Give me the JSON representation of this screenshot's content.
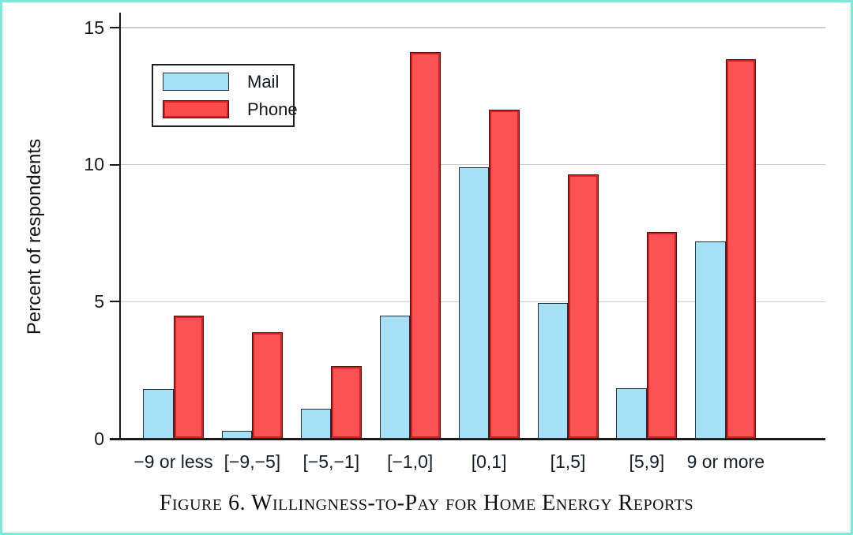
{
  "figure": {
    "caption": "Figure 6. Willingness-to-Pay for Home Energy Reports"
  },
  "chart_data": {
    "type": "bar",
    "title": "",
    "xlabel": "",
    "ylabel": "Percent of respondents",
    "categories": [
      "−9 or less",
      "[−9,−5]",
      "[−5,−1]",
      "[−1,0]",
      "[0,1]",
      "[1,5]",
      "[5,9]",
      "9 or more"
    ],
    "series": [
      {
        "name": "Mail",
        "color": "#a6e0f7",
        "values": [
          1.8,
          0.3,
          1.1,
          4.5,
          9.9,
          4.95,
          1.85,
          7.2
        ]
      },
      {
        "name": "Phone",
        "color": "#fb5353",
        "values": [
          4.5,
          3.9,
          2.65,
          14.1,
          12.0,
          9.65,
          7.55,
          13.85
        ]
      }
    ],
    "ylim": [
      0,
      15
    ],
    "yticks": [
      0,
      5,
      10,
      15
    ],
    "grid": true,
    "legend_position": "upper-left"
  }
}
